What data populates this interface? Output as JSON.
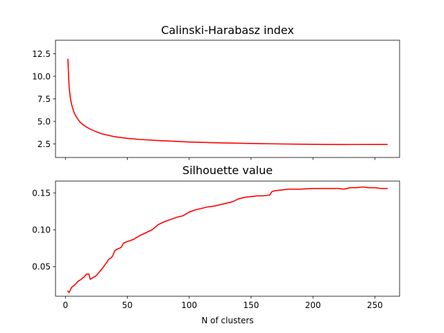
{
  "chart_data": [
    {
      "type": "line",
      "title": "Calinski-Harabasz index",
      "xlabel": "",
      "ylabel": "",
      "color": "#ff0000",
      "xlim": [
        -8,
        270
      ],
      "ylim": [
        1.0,
        14.0
      ],
      "xticks": [
        0,
        50,
        100,
        150,
        200,
        250
      ],
      "xtick_labels": [
        "",
        "",
        "",
        "",
        "",
        ""
      ],
      "yticks": [
        2.5,
        5.0,
        7.5,
        10.0,
        12.5
      ],
      "ytick_labels": [
        "2.5",
        "5.0",
        "7.5",
        "10.0",
        "12.5"
      ],
      "grid": false,
      "series": [
        {
          "x": [
            2,
            3,
            4,
            5,
            6,
            7,
            8,
            10,
            12,
            15,
            18,
            20,
            25,
            30,
            40,
            50,
            60,
            75,
            100,
            125,
            150,
            175,
            200,
            225,
            250,
            260
          ],
          "y": [
            11.9,
            8.8,
            7.6,
            6.9,
            6.4,
            6.0,
            5.7,
            5.25,
            4.9,
            4.55,
            4.3,
            4.15,
            3.85,
            3.6,
            3.3,
            3.12,
            3.0,
            2.88,
            2.72,
            2.62,
            2.55,
            2.5,
            2.46,
            2.44,
            2.45,
            2.45
          ]
        }
      ]
    },
    {
      "type": "line",
      "title": "Silhouette value",
      "xlabel": "N of clusters",
      "ylabel": "",
      "color": "#ff0000",
      "xlim": [
        -8,
        270
      ],
      "ylim": [
        0.01,
        0.166
      ],
      "xticks": [
        0,
        50,
        100,
        150,
        200,
        250
      ],
      "xtick_labels": [
        "0",
        "50",
        "100",
        "150",
        "200",
        "250"
      ],
      "yticks": [
        0.05,
        0.1,
        0.15
      ],
      "ytick_labels": [
        "0.05",
        "0.10",
        "0.15"
      ],
      "grid": false,
      "series": [
        {
          "x": [
            2,
            3,
            5,
            8,
            10,
            12,
            15,
            17,
            19,
            20,
            22,
            25,
            28,
            30,
            33,
            35,
            37,
            38,
            40,
            42,
            45,
            47,
            50,
            55,
            60,
            65,
            70,
            75,
            80,
            85,
            90,
            95,
            100,
            105,
            110,
            115,
            120,
            125,
            130,
            135,
            140,
            145,
            150,
            155,
            160,
            165,
            167,
            170,
            175,
            180,
            190,
            200,
            210,
            220,
            225,
            230,
            235,
            240,
            245,
            250,
            255,
            260
          ],
          "y": [
            0.017,
            0.015,
            0.022,
            0.026,
            0.03,
            0.032,
            0.036,
            0.04,
            0.04,
            0.033,
            0.035,
            0.038,
            0.044,
            0.048,
            0.055,
            0.06,
            0.062,
            0.064,
            0.072,
            0.074,
            0.076,
            0.082,
            0.084,
            0.087,
            0.092,
            0.096,
            0.1,
            0.107,
            0.111,
            0.114,
            0.117,
            0.119,
            0.124,
            0.127,
            0.129,
            0.131,
            0.132,
            0.134,
            0.136,
            0.138,
            0.142,
            0.144,
            0.145,
            0.146,
            0.146,
            0.147,
            0.152,
            0.153,
            0.154,
            0.155,
            0.155,
            0.156,
            0.156,
            0.156,
            0.155,
            0.157,
            0.157,
            0.158,
            0.157,
            0.157,
            0.156,
            0.156
          ]
        }
      ]
    }
  ]
}
